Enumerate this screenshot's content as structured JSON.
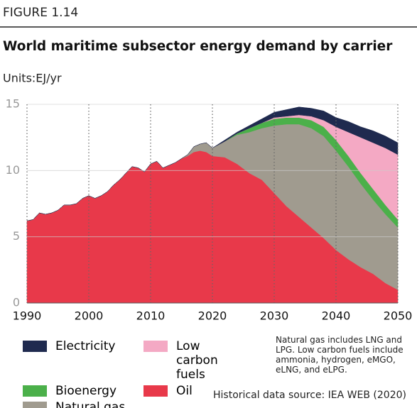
{
  "figure_label": "FIGURE 1.14",
  "units": "Units:EJ/yr",
  "note": "Natural gas includes LNG and LPG. Low carbon fuels include ammonia, hydrogen, eMGO, eLNG, and eLPG.",
  "source": "Historical data source: IEA WEB (2020)",
  "chart_data": {
    "type": "stacked_area",
    "title": "World maritime subsector energy demand by carrier",
    "x": [
      1990,
      1991,
      1992,
      1993,
      1994,
      1995,
      1996,
      1997,
      1998,
      1999,
      2000,
      2001,
      2002,
      2003,
      2004,
      2005,
      2006,
      2007,
      2008,
      2009,
      2010,
      2011,
      2012,
      2013,
      2014,
      2015,
      2016,
      2017,
      2018,
      2019,
      2020,
      2022,
      2024,
      2026,
      2028,
      2030,
      2032,
      2034,
      2036,
      2038,
      2040,
      2042,
      2044,
      2046,
      2048,
      2050
    ],
    "series": [
      {
        "name": "Oil",
        "color": "#e8394a",
        "values": [
          6.2,
          6.3,
          6.8,
          6.7,
          6.8,
          7.0,
          7.4,
          7.4,
          7.5,
          7.9,
          8.1,
          7.9,
          8.1,
          8.4,
          8.9,
          9.3,
          9.8,
          10.3,
          10.2,
          9.9,
          10.5,
          10.7,
          10.2,
          10.4,
          10.6,
          10.9,
          11.1,
          11.4,
          11.5,
          11.4,
          11.1,
          11.0,
          10.5,
          9.8,
          9.3,
          8.3,
          7.3,
          6.5,
          5.7,
          4.9,
          4.0,
          3.3,
          2.7,
          2.2,
          1.5,
          1.0
        ]
      },
      {
        "name": "Natural gas",
        "color": "#a09b8f",
        "values": [
          0,
          0,
          0,
          0,
          0,
          0,
          0,
          0,
          0,
          0,
          0,
          0,
          0,
          0,
          0,
          0,
          0,
          0,
          0,
          0,
          0,
          0,
          0,
          0,
          0,
          0,
          0.1,
          0.4,
          0.5,
          0.7,
          0.6,
          1.2,
          2.2,
          3.1,
          3.9,
          5.1,
          6.2,
          7.0,
          7.5,
          7.7,
          7.5,
          7.0,
          6.3,
          5.6,
          5.2,
          4.7
        ]
      },
      {
        "name": "Bioenergy",
        "color": "#4bb04a",
        "values": [
          0,
          0,
          0,
          0,
          0,
          0,
          0,
          0,
          0,
          0,
          0,
          0,
          0,
          0,
          0,
          0,
          0,
          0,
          0,
          0,
          0,
          0,
          0,
          0,
          0,
          0,
          0,
          0,
          0,
          0,
          0,
          0,
          0.1,
          0.3,
          0.4,
          0.5,
          0.5,
          0.5,
          0.6,
          0.7,
          0.8,
          0.8,
          0.8,
          0.8,
          0.7,
          0.6
        ]
      },
      {
        "name": "Low carbon fuels",
        "color": "#f4a9c4",
        "values": [
          0,
          0,
          0,
          0,
          0,
          0,
          0,
          0,
          0,
          0,
          0,
          0,
          0,
          0,
          0,
          0,
          0,
          0,
          0,
          0,
          0,
          0,
          0,
          0,
          0,
          0,
          0,
          0,
          0,
          0,
          0,
          0,
          0,
          0,
          0,
          0.1,
          0.1,
          0.2,
          0.3,
          0.5,
          1.0,
          1.8,
          2.7,
          3.5,
          4.3,
          4.9
        ]
      },
      {
        "name": "Electricity",
        "color": "#1f2a4f",
        "values": [
          0,
          0,
          0,
          0,
          0,
          0,
          0,
          0,
          0,
          0,
          0,
          0,
          0,
          0,
          0,
          0,
          0,
          0,
          0,
          0,
          0,
          0,
          0,
          0,
          0,
          0,
          0,
          0,
          0,
          0,
          0,
          0.1,
          0.1,
          0.2,
          0.3,
          0.4,
          0.5,
          0.6,
          0.6,
          0.7,
          0.7,
          0.8,
          0.8,
          0.9,
          0.9,
          0.9
        ]
      }
    ],
    "xlim": [
      1990,
      2050
    ],
    "xticks": [
      1990,
      2000,
      2010,
      2020,
      2030,
      2040,
      2050
    ],
    "ylim": [
      0,
      15
    ],
    "yticks": [
      0,
      5,
      10,
      15
    ],
    "grid": true,
    "legend_order": [
      4,
      2,
      1,
      3,
      0
    ]
  }
}
